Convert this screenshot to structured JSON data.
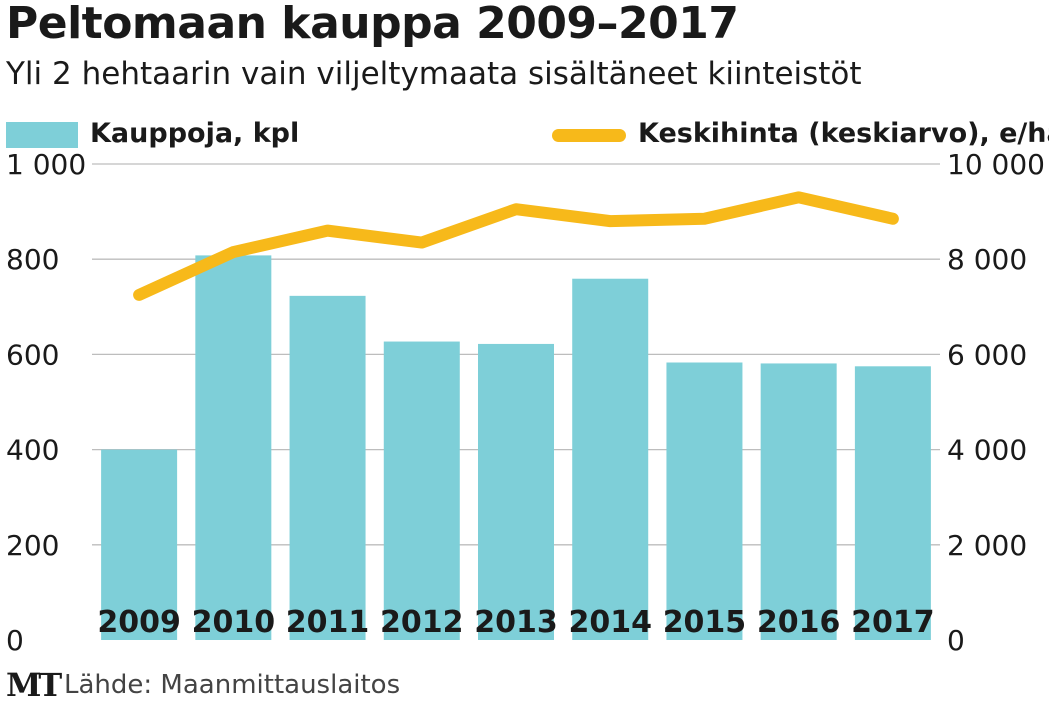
{
  "header": {
    "title": "Peltomaan kauppa 2009–2017",
    "subtitle": "Yli 2 hehtaarin vain viljeltymaata sisältäneet kiinteistöt"
  },
  "legend": {
    "bars_label": "Kauppoja, kpl",
    "line_label": "Keskihinta (keskiarvo), e/ha"
  },
  "footer": {
    "logo": "MT",
    "source": "Lähde: Maanmittauslaitos"
  },
  "colors": {
    "bar": "#7ecfd8",
    "line": "#f7b91a",
    "grid": "#bdbdbd",
    "text": "#1a1a1a"
  },
  "chart_data": {
    "type": "bar+line",
    "categories": [
      "2009",
      "2010",
      "2011",
      "2012",
      "2013",
      "2014",
      "2015",
      "2016",
      "2017"
    ],
    "series": [
      {
        "name": "Kauppoja, kpl",
        "type": "bar",
        "axis": "left",
        "values": [
          400,
          808,
          723,
          627,
          622,
          759,
          583,
          581,
          575
        ]
      },
      {
        "name": "Keskihinta (keskiarvo), e/ha",
        "type": "line",
        "axis": "right",
        "values": [
          7250,
          8150,
          8600,
          8350,
          9050,
          8800,
          8850,
          9300,
          8850
        ]
      }
    ],
    "y_left": {
      "min": 0,
      "max": 1000,
      "ticks": [
        0,
        200,
        400,
        600,
        800,
        1000
      ],
      "tick_labels": [
        "0",
        "200",
        "400",
        "600",
        "800",
        "1 000"
      ]
    },
    "y_right": {
      "min": 0,
      "max": 10000,
      "ticks": [
        0,
        2000,
        4000,
        6000,
        8000,
        10000
      ],
      "tick_labels": [
        "0",
        "2 000",
        "4 000",
        "6 000",
        "8 000",
        "10 000"
      ]
    },
    "grid": true
  }
}
